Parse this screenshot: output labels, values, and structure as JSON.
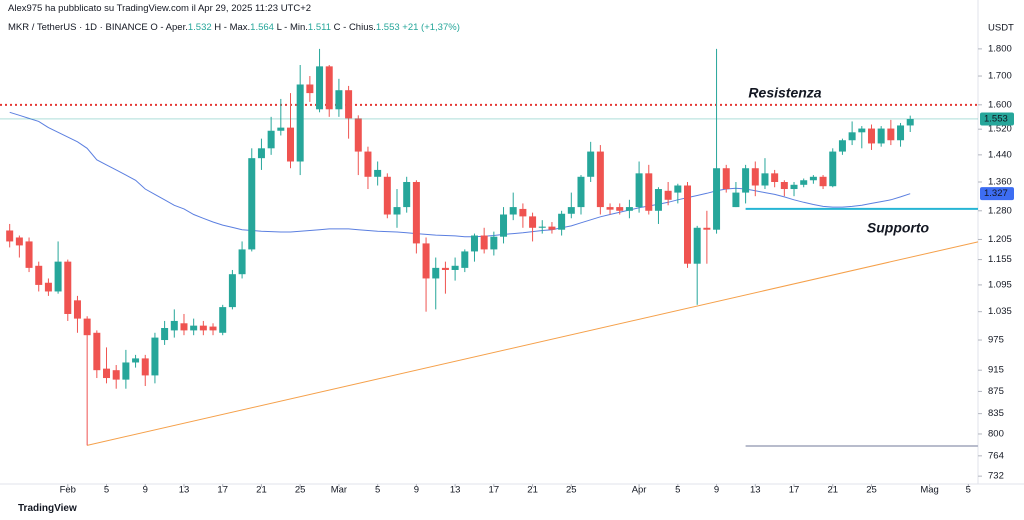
{
  "header": {
    "author": "Alex975 ha pubblicato su TradingView.com il Apr 29, 2025 11:23 UTC+2",
    "symbol": "MKR / TetherUS · 1D · BINANCE",
    "ohlc": [
      {
        "label": "O - Aper.",
        "value": "1.532"
      },
      {
        "label": "H - Max.",
        "value": "1.564"
      },
      {
        "label": "L - Min.",
        "value": "1.511"
      },
      {
        "label": "C - Chius.",
        "value": "1.553"
      }
    ],
    "change": "+21 (+1,37%)"
  },
  "footer": {
    "brand": "TradingView"
  },
  "chart_data": {
    "type": "candlestick",
    "log_scale": true,
    "grid": false,
    "y_unit": "USDT",
    "up_color": "#26a69a",
    "down_color": "#ef5350",
    "xlim": [
      "01-25",
      "05-06"
    ],
    "xticks": [
      {
        "value": "02-01",
        "label": "Feb"
      },
      {
        "value": "02-05",
        "label": "5"
      },
      {
        "value": "02-09",
        "label": "9"
      },
      {
        "value": "02-13",
        "label": "13"
      },
      {
        "value": "02-17",
        "label": "17"
      },
      {
        "value": "02-21",
        "label": "21"
      },
      {
        "value": "02-25",
        "label": "25"
      },
      {
        "value": "03-01",
        "label": "Mar"
      },
      {
        "value": "03-05",
        "label": "5"
      },
      {
        "value": "03-09",
        "label": "9"
      },
      {
        "value": "03-13",
        "label": "13"
      },
      {
        "value": "03-17",
        "label": "17"
      },
      {
        "value": "03-21",
        "label": "21"
      },
      {
        "value": "03-25",
        "label": "25"
      },
      {
        "value": "04-01",
        "label": "Apr"
      },
      {
        "value": "04-05",
        "label": "5"
      },
      {
        "value": "04-09",
        "label": "9"
      },
      {
        "value": "04-13",
        "label": "13"
      },
      {
        "value": "04-17",
        "label": "17"
      },
      {
        "value": "04-21",
        "label": "21"
      },
      {
        "value": "04-25",
        "label": "25"
      },
      {
        "value": "05-01",
        "label": "Mag"
      },
      {
        "value": "05-05",
        "label": "5"
      }
    ],
    "ylim": [
      720,
      1921
    ],
    "yticks": [
      {
        "value": 1800,
        "label": "1.800"
      },
      {
        "value": 1700,
        "label": "1.700"
      },
      {
        "value": 1600,
        "label": "1.600"
      },
      {
        "value": 1520,
        "label": "1.520"
      },
      {
        "value": 1440,
        "label": "1.440"
      },
      {
        "value": 1360,
        "label": "1.360"
      },
      {
        "value": 1280,
        "label": "1.280"
      },
      {
        "value": 1205,
        "label": "1.205"
      },
      {
        "value": 1155,
        "label": "1.155"
      },
      {
        "value": 1095,
        "label": "1.095"
      },
      {
        "value": 1035,
        "label": "1.035"
      },
      975,
      915,
      875,
      835,
      800,
      764,
      732
    ],
    "x": [
      "01-26",
      "01-27",
      "01-28",
      "01-29",
      "01-30",
      "01-31",
      "02-01",
      "02-02",
      "02-03",
      "02-04",
      "02-05",
      "02-06",
      "02-07",
      "02-08",
      "02-09",
      "02-10",
      "02-11",
      "02-12",
      "02-13",
      "02-14",
      "02-15",
      "02-16",
      "02-17",
      "02-18",
      "02-19",
      "02-20",
      "02-21",
      "02-22",
      "02-23",
      "02-24",
      "02-25",
      "02-26",
      "02-27",
      "02-28",
      "03-01",
      "03-02",
      "03-03",
      "03-04",
      "03-05",
      "03-06",
      "03-07",
      "03-08",
      "03-09",
      "03-10",
      "03-11",
      "03-12",
      "03-13",
      "03-14",
      "03-15",
      "03-16",
      "03-17",
      "03-18",
      "03-19",
      "03-20",
      "03-21",
      "03-22",
      "03-23",
      "03-24",
      "03-25",
      "03-26",
      "03-27",
      "03-28",
      "03-29",
      "03-30",
      "03-31",
      "04-01",
      "04-02",
      "04-03",
      "04-04",
      "04-05",
      "04-06",
      "04-07",
      "04-08",
      "04-09",
      "04-10",
      "04-11",
      "04-12",
      "04-13",
      "04-14",
      "04-15",
      "04-16",
      "04-17",
      "04-18",
      "04-19",
      "04-20",
      "04-21",
      "04-22",
      "04-23",
      "04-24",
      "04-25",
      "04-26",
      "04-27",
      "04-28",
      "04-29"
    ],
    "open": [
      1228,
      1210,
      1200,
      1140,
      1100,
      1080,
      1150,
      1060,
      1020,
      990,
      918,
      915,
      897,
      930,
      938,
      905,
      975,
      995,
      1010,
      995,
      1005,
      1003,
      990,
      1045,
      1120,
      1180,
      1430,
      1460,
      1515,
      1525,
      1420,
      1670,
      1585,
      1735,
      1585,
      1650,
      1555,
      1450,
      1375,
      1375,
      1270,
      1290,
      1360,
      1195,
      1110,
      1135,
      1130,
      1135,
      1175,
      1215,
      1180,
      1212,
      1270,
      1285,
      1265,
      1235,
      1238,
      1230,
      1272,
      1290,
      1375,
      1450,
      1290,
      1290,
      1280,
      1290,
      1385,
      1280,
      1335,
      1330,
      1350,
      1145,
      1235,
      1230,
      1400,
      1290,
      1330,
      1400,
      1350,
      1385,
      1360,
      1340,
      1352,
      1365,
      1375,
      1348,
      1450,
      1485,
      1510,
      1522,
      1475,
      1522,
      1485,
      1532
    ],
    "high": [
      1245,
      1215,
      1210,
      1150,
      1110,
      1200,
      1155,
      1070,
      1025,
      995,
      960,
      925,
      955,
      945,
      945,
      990,
      1015,
      1040,
      1030,
      1020,
      1015,
      1010,
      1050,
      1130,
      1200,
      1460,
      1490,
      1560,
      1620,
      1640,
      1740,
      1700,
      1800,
      1740,
      1690,
      1665,
      1565,
      1465,
      1420,
      1385,
      1340,
      1375,
      1365,
      1210,
      1160,
      1150,
      1160,
      1180,
      1220,
      1235,
      1225,
      1290,
      1330,
      1300,
      1275,
      1255,
      1250,
      1280,
      1330,
      1380,
      1480,
      1470,
      1300,
      1300,
      1310,
      1420,
      1410,
      1345,
      1360,
      1355,
      1360,
      1240,
      1280,
      1800,
      1410,
      1360,
      1410,
      1420,
      1430,
      1395,
      1365,
      1360,
      1370,
      1380,
      1380,
      1460,
      1490,
      1545,
      1530,
      1535,
      1530,
      1550,
      1540,
      1564
    ],
    "low": [
      1185,
      1160,
      1125,
      1080,
      1070,
      1075,
      1015,
      990,
      781,
      900,
      890,
      880,
      880,
      920,
      885,
      890,
      965,
      980,
      985,
      985,
      985,
      985,
      985,
      1040,
      1110,
      1175,
      1395,
      1440,
      1500,
      1400,
      1380,
      1610,
      1575,
      1560,
      1560,
      1490,
      1380,
      1340,
      1350,
      1260,
      1235,
      1275,
      1170,
      1035,
      1040,
      1075,
      1105,
      1125,
      1150,
      1170,
      1165,
      1195,
      1255,
      1235,
      1200,
      1220,
      1220,
      1215,
      1260,
      1270,
      1360,
      1270,
      1270,
      1270,
      1260,
      1275,
      1270,
      1245,
      1295,
      1300,
      1135,
      1050,
      1145,
      1220,
      1330,
      1290,
      1300,
      1320,
      1340,
      1345,
      1320,
      1320,
      1345,
      1355,
      1340,
      1345,
      1440,
      1470,
      1460,
      1455,
      1465,
      1470,
      1465,
      1511
    ],
    "close": [
      1200,
      1190,
      1135,
      1095,
      1080,
      1150,
      1030,
      1020,
      985,
      915,
      900,
      897,
      930,
      938,
      905,
      980,
      1000,
      1015,
      995,
      1005,
      995,
      995,
      1045,
      1120,
      1180,
      1430,
      1460,
      1515,
      1525,
      1420,
      1670,
      1640,
      1735,
      1585,
      1650,
      1555,
      1450,
      1375,
      1395,
      1270,
      1290,
      1360,
      1195,
      1110,
      1135,
      1130,
      1140,
      1175,
      1215,
      1180,
      1212,
      1270,
      1290,
      1265,
      1235,
      1238,
      1230,
      1272,
      1290,
      1375,
      1450,
      1290,
      1283,
      1280,
      1290,
      1385,
      1280,
      1340,
      1310,
      1350,
      1145,
      1235,
      1230,
      1400,
      1340,
      1330,
      1400,
      1350,
      1385,
      1360,
      1340,
      1352,
      1365,
      1375,
      1348,
      1450,
      1485,
      1510,
      1522,
      1475,
      1522,
      1485,
      1532,
      1553
    ],
    "ma": {
      "color": "#5b7fe0",
      "values": [
        1575,
        1565,
        1555,
        1545,
        1525,
        1510,
        1495,
        1480,
        1460,
        1425,
        1410,
        1395,
        1380,
        1365,
        1340,
        1325,
        1310,
        1295,
        1285,
        1270,
        1260,
        1250,
        1242,
        1236,
        1230,
        1228,
        1226,
        1225,
        1224,
        1224,
        1226,
        1228,
        1230,
        1232,
        1232,
        1232,
        1230,
        1228,
        1226,
        1225,
        1224,
        1222,
        1220,
        1218,
        1216,
        1215,
        1214,
        1212,
        1212,
        1213,
        1215,
        1218,
        1220,
        1222,
        1225,
        1228,
        1230,
        1235,
        1240,
        1248,
        1256,
        1264,
        1270,
        1276,
        1282,
        1288,
        1293,
        1298,
        1303,
        1310,
        1316,
        1322,
        1328,
        1335,
        1340,
        1342,
        1340,
        1335,
        1330,
        1325,
        1318,
        1310,
        1303,
        1297,
        1292,
        1290,
        1290,
        1292,
        1295,
        1300,
        1305,
        1310,
        1318,
        1327
      ]
    },
    "hlines": [
      {
        "label": "Resistenza",
        "value": 1600,
        "color": "#e53935",
        "style": "dotted"
      },
      {
        "label": "Supporto",
        "value": 1285,
        "color": "#26b5d4",
        "style": "solid",
        "from": "04-12"
      },
      {
        "value": 780,
        "color": "#b8bccc",
        "style": "solid",
        "from": "04-12"
      }
    ],
    "trendline": {
      "color": "#f5a04a",
      "from": {
        "x": "02-03",
        "value": 781
      },
      "to": {
        "x": "05-06",
        "value": 1199
      }
    },
    "price_tags": [
      {
        "value": 1553,
        "label": "1.553",
        "color": "#26a69a"
      },
      {
        "value": 1327,
        "label": "1.327",
        "color": "#3d6df2"
      }
    ]
  }
}
